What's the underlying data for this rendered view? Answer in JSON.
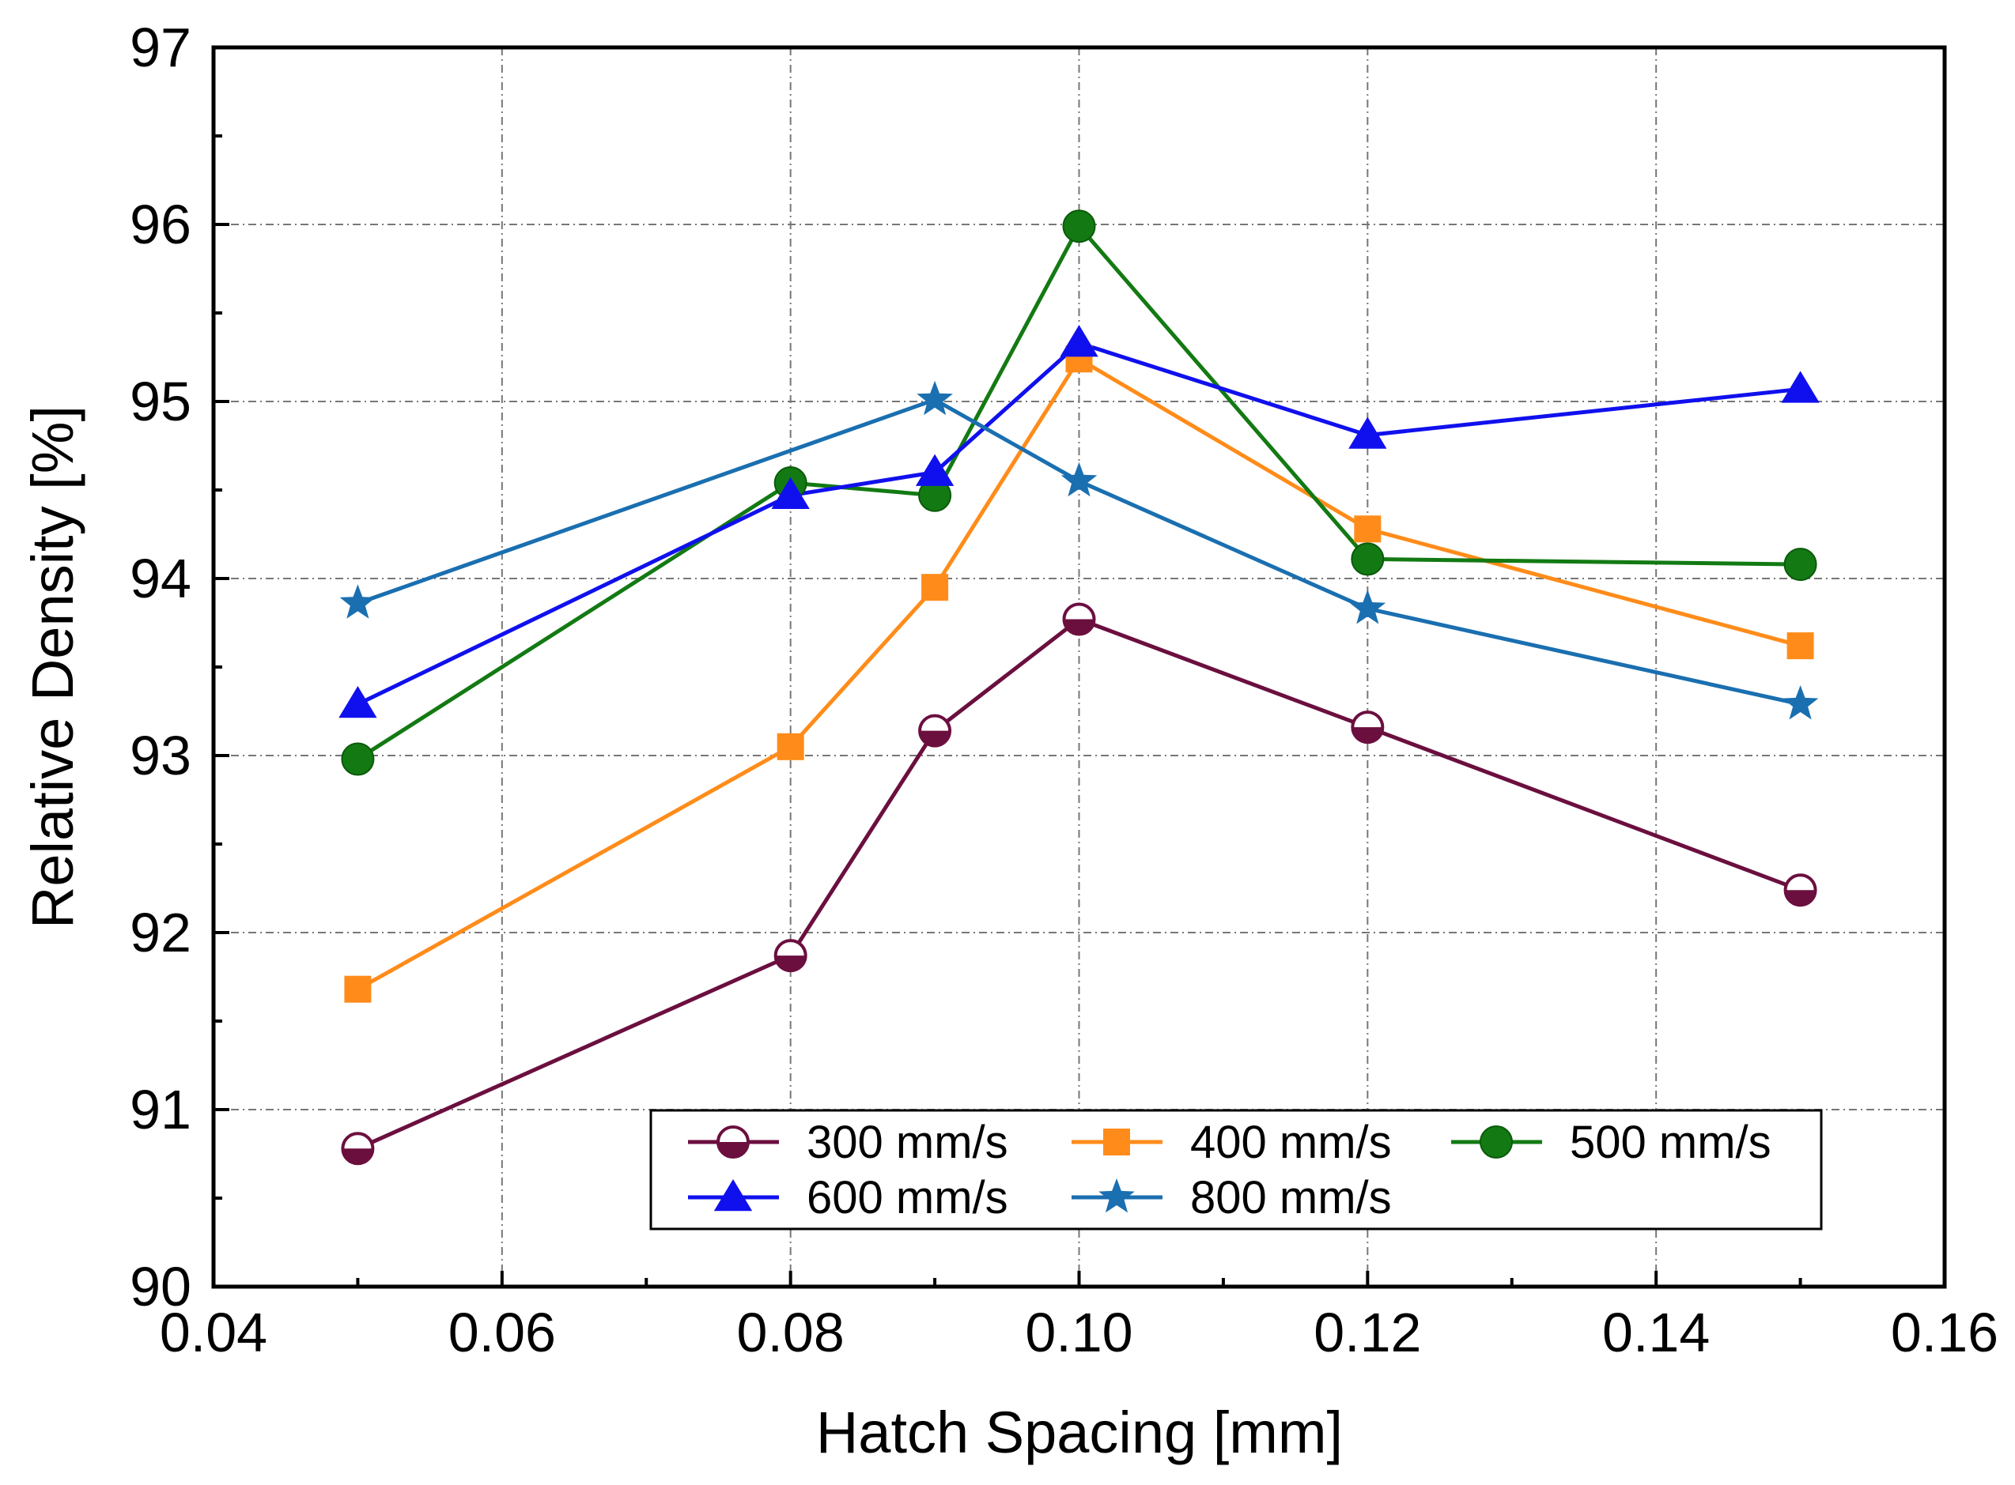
{
  "chart_data": {
    "type": "line",
    "xlabel": "Hatch Spacing [mm]",
    "ylabel": "Relative Density [%]",
    "xlim": [
      0.04,
      0.16
    ],
    "ylim": [
      90,
      97
    ],
    "x_ticks": [
      "0.04",
      "0.06",
      "0.08",
      "0.10",
      "0.12",
      "0.14",
      "0.16"
    ],
    "y_ticks": [
      "90",
      "91",
      "92",
      "93",
      "94",
      "95",
      "96",
      "97"
    ],
    "grid": true,
    "legend_position": "bottom-right",
    "series": [
      {
        "name": "300 mm/s",
        "color": "#6b0f3f",
        "marker": "half-circle",
        "x": [
          0.05,
          0.08,
          0.09,
          0.1,
          0.12,
          0.15
        ],
        "y": [
          90.78,
          91.87,
          93.14,
          93.77,
          93.16,
          92.24
        ]
      },
      {
        "name": "400 mm/s",
        "color": "#ff8c1a",
        "marker": "square",
        "x": [
          0.05,
          0.08,
          0.09,
          0.1,
          0.12,
          0.15
        ],
        "y": [
          91.68,
          93.05,
          93.95,
          95.24,
          94.28,
          93.62
        ]
      },
      {
        "name": "500 mm/s",
        "color": "#137a13",
        "marker": "circle",
        "x": [
          0.05,
          0.08,
          0.09,
          0.1,
          0.12,
          0.15
        ],
        "y": [
          92.98,
          94.54,
          94.47,
          95.99,
          94.11,
          94.08
        ]
      },
      {
        "name": "600 mm/s",
        "color": "#1010ee",
        "marker": "triangle",
        "x": [
          0.05,
          0.08,
          0.09,
          0.1,
          0.12,
          0.15
        ],
        "y": [
          93.29,
          94.47,
          94.6,
          95.33,
          94.81,
          95.07
        ]
      },
      {
        "name": "800 mm/s",
        "color": "#1a6fb0",
        "marker": "star",
        "x": [
          0.05,
          0.09,
          0.1,
          0.12,
          0.15
        ],
        "y": [
          93.86,
          95.01,
          94.55,
          93.83,
          93.29
        ]
      }
    ]
  }
}
